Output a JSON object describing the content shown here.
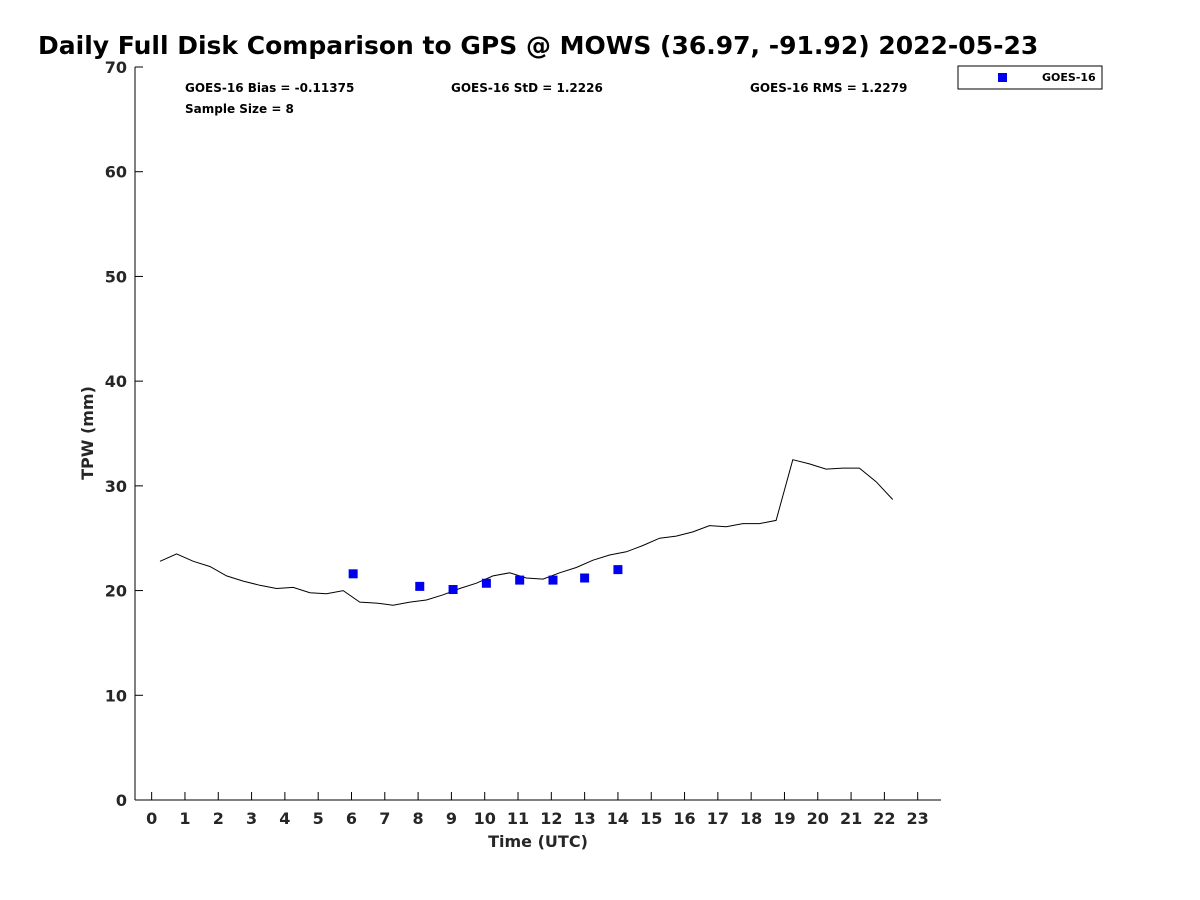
{
  "chart_data": {
    "type": "scatter",
    "title": "Daily Full Disk Comparison to GPS @ MOWS (36.97, -91.92) 2022-05-23",
    "xlabel": "Time (UTC)",
    "ylabel": "TPW (mm)",
    "xlim": [
      -0.5,
      23.7
    ],
    "ylim": [
      0,
      70
    ],
    "x_ticks": [
      0,
      1,
      2,
      3,
      4,
      5,
      6,
      7,
      8,
      9,
      10,
      11,
      12,
      13,
      14,
      15,
      16,
      17,
      18,
      19,
      20,
      21,
      22,
      23
    ],
    "y_ticks": [
      0,
      10,
      20,
      30,
      40,
      50,
      60,
      70
    ],
    "grid": false,
    "legend_position": "top-right",
    "stats": {
      "bias": "GOES-16 Bias = -0.11375",
      "std": "GOES-16 StD = 1.2226",
      "rms": "GOES-16 RMS = 1.2279",
      "sample_size": "Sample Size = 8"
    },
    "series": [
      {
        "name": "GOES-16",
        "kind": "scatter",
        "marker": "square",
        "color": "#0000ee",
        "x": [
          6.05,
          8.05,
          9.05,
          10.05,
          11.05,
          12.05,
          13.0,
          14.0
        ],
        "y": [
          21.6,
          20.4,
          20.1,
          20.7,
          21.0,
          21.0,
          21.2,
          22.0
        ]
      },
      {
        "kind": "line",
        "color": "#000000",
        "x": [
          0.25,
          0.75,
          1.25,
          1.75,
          2.25,
          2.75,
          3.25,
          3.75,
          4.25,
          4.75,
          5.25,
          5.75,
          6.25,
          6.75,
          7.25,
          7.75,
          8.25,
          8.75,
          9.25,
          9.75,
          10.25,
          10.75,
          11.25,
          11.75,
          12.25,
          12.75,
          13.25,
          13.75,
          14.25,
          14.75,
          15.25,
          15.75,
          16.25,
          16.75,
          17.25,
          17.75,
          18.25,
          18.75,
          19.25,
          19.75,
          20.25,
          20.75,
          21.25,
          21.75,
          22.25
        ],
        "y": [
          22.8,
          23.5,
          22.8,
          22.3,
          21.4,
          20.9,
          20.5,
          20.2,
          20.3,
          19.8,
          19.7,
          20.0,
          18.9,
          18.8,
          18.6,
          18.9,
          19.1,
          19.6,
          20.2,
          20.7,
          21.4,
          21.7,
          21.2,
          21.1,
          21.7,
          22.2,
          22.9,
          23.4,
          23.7,
          24.3,
          25.0,
          25.2,
          25.6,
          26.2,
          26.1,
          26.4,
          26.4,
          26.7,
          32.5,
          32.1,
          31.6,
          31.7,
          31.7,
          30.4,
          28.7
        ]
      }
    ]
  }
}
